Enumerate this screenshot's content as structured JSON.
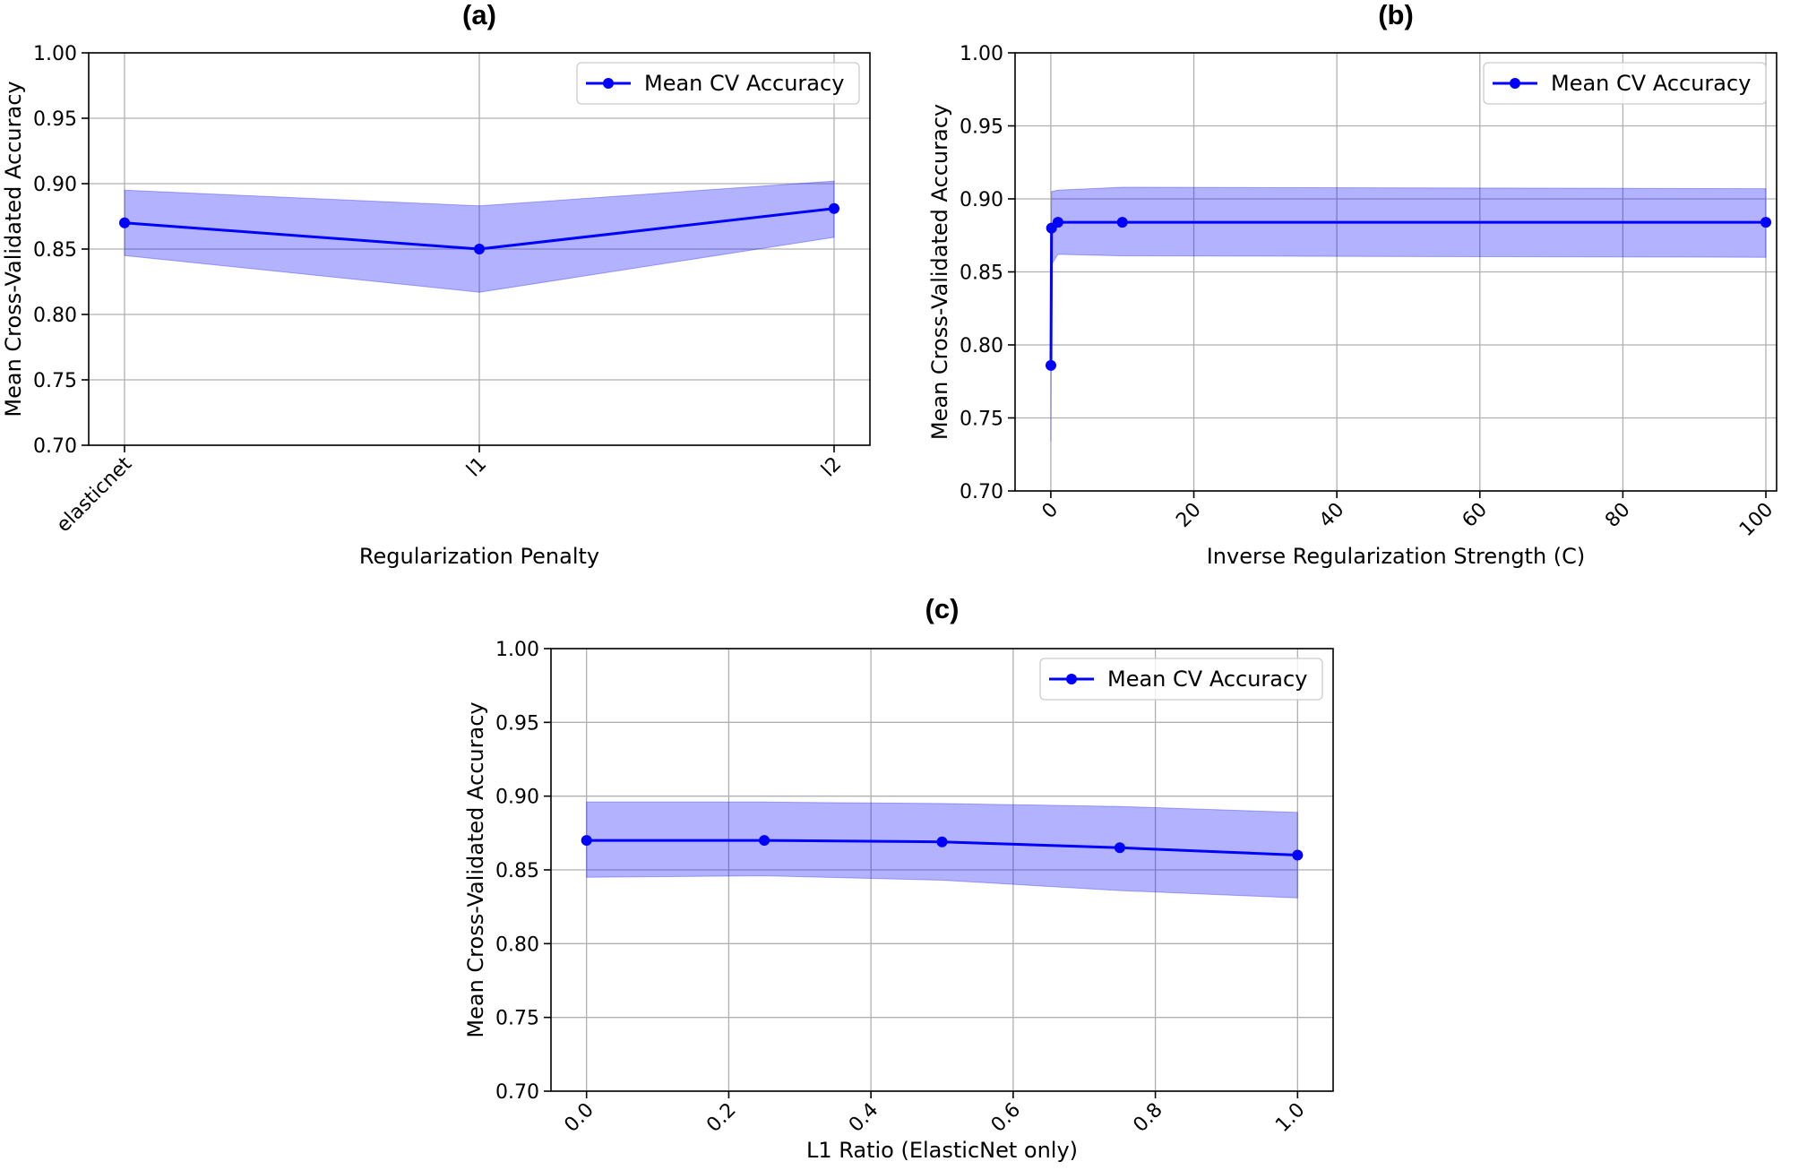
{
  "chart_data": [
    {
      "id": "a",
      "type": "line",
      "title": "(a)",
      "xlabel": "Regularization Penalty",
      "ylabel": "Mean Cross-Validated Accuracy",
      "x_type": "categorical",
      "categories": [
        "elasticnet",
        "l1",
        "l2"
      ],
      "x_tick_labels": [
        "elasticnet",
        "l1",
        "l2"
      ],
      "ylim": [
        0.7,
        1.0
      ],
      "y_ticks": [
        0.7,
        0.75,
        0.8,
        0.85,
        0.9,
        0.95,
        1.0
      ],
      "y_tick_labels": [
        "0.70",
        "0.75",
        "0.80",
        "0.85",
        "0.90",
        "0.95",
        "1.00"
      ],
      "grid": true,
      "legend_position": "top-right",
      "series": [
        {
          "name": "Mean CV Accuracy",
          "color": "#0000ff",
          "values": [
            0.87,
            0.85,
            0.881
          ],
          "band_upper": [
            0.895,
            0.883,
            0.902
          ],
          "band_lower": [
            0.845,
            0.817,
            0.859
          ]
        }
      ]
    },
    {
      "id": "b",
      "type": "line",
      "title": "(b)",
      "xlabel": "Inverse Regularization Strength (C)",
      "ylabel": "Mean Cross-Validated Accuracy",
      "x_type": "numeric",
      "xlim": [
        -5,
        101.5
      ],
      "x_ticks": [
        0,
        20,
        40,
        60,
        80,
        100
      ],
      "x_tick_labels": [
        "0",
        "20",
        "40",
        "60",
        "80",
        "100"
      ],
      "ylim": [
        0.7,
        1.0
      ],
      "y_ticks": [
        0.7,
        0.75,
        0.8,
        0.85,
        0.9,
        0.95,
        1.0
      ],
      "y_tick_labels": [
        "0.70",
        "0.75",
        "0.80",
        "0.85",
        "0.90",
        "0.95",
        "1.00"
      ],
      "grid": true,
      "legend_position": "top-right",
      "series": [
        {
          "name": "Mean CV Accuracy",
          "color": "#0000ff",
          "x": [
            0.01,
            0.1,
            1,
            10,
            100
          ],
          "values": [
            0.786,
            0.88,
            0.884,
            0.884,
            0.884
          ],
          "band_upper": [
            0.838,
            0.905,
            0.906,
            0.908,
            0.907
          ],
          "band_lower": [
            0.734,
            0.855,
            0.862,
            0.861,
            0.86
          ]
        }
      ]
    },
    {
      "id": "c",
      "type": "line",
      "title": "(c)",
      "xlabel": "L1 Ratio (ElasticNet only)",
      "ylabel": "Mean Cross-Validated Accuracy",
      "x_type": "numeric",
      "xlim": [
        -0.05,
        1.05
      ],
      "x_ticks": [
        0.0,
        0.2,
        0.4,
        0.6,
        0.8,
        1.0
      ],
      "x_tick_labels": [
        "0.0",
        "0.2",
        "0.4",
        "0.6",
        "0.8",
        "1.0"
      ],
      "ylim": [
        0.7,
        1.0
      ],
      "y_ticks": [
        0.7,
        0.75,
        0.8,
        0.85,
        0.9,
        0.95,
        1.0
      ],
      "y_tick_labels": [
        "0.70",
        "0.75",
        "0.80",
        "0.85",
        "0.90",
        "0.95",
        "1.00"
      ],
      "grid": true,
      "legend_position": "top-right",
      "series": [
        {
          "name": "Mean CV Accuracy",
          "color": "#0000ff",
          "x": [
            0.0,
            0.25,
            0.5,
            0.75,
            1.0
          ],
          "values": [
            0.87,
            0.87,
            0.869,
            0.865,
            0.86
          ],
          "band_upper": [
            0.896,
            0.896,
            0.895,
            0.893,
            0.889
          ],
          "band_lower": [
            0.845,
            0.846,
            0.843,
            0.836,
            0.831
          ]
        }
      ]
    }
  ]
}
